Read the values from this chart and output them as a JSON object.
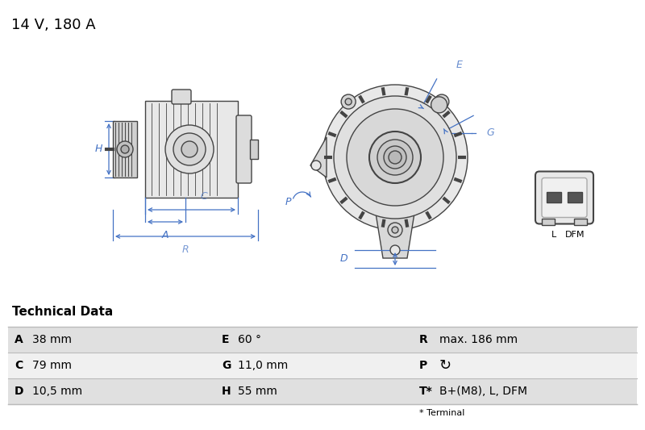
{
  "title": "14 V, 180 A",
  "bg_color": "#ffffff",
  "title_fontsize": 13,
  "tech_header": "Technical Data",
  "table_rows": [
    [
      "A",
      "38 mm",
      "E",
      "60 °",
      "R",
      "max. 186 mm"
    ],
    [
      "C",
      "79 mm",
      "G",
      "11,0 mm",
      "P",
      "↻"
    ],
    [
      "D",
      "10,5 mm",
      "H",
      "55 mm",
      "T*",
      "B+(M8), L, DFM"
    ]
  ],
  "footnote": "* Terminal",
  "blue": "#4472c4",
  "dgray": "#444444",
  "lgray": "#aaaaaa",
  "table_bg1": "#e0e0e0",
  "table_bg2": "#f0f0f0",
  "table_line": "#bbbbbb"
}
